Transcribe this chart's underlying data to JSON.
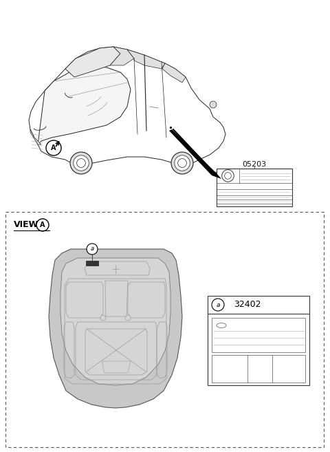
{
  "bg_color": "#ffffff",
  "part_number_top": "05203",
  "part_number_bottom": "32402",
  "view_label": "VIEW",
  "circle_label_A": "A",
  "circle_label_a": "a",
  "car_color": "#f0f0f0",
  "hood_fill": "#cccccc",
  "hood_inner_fill": "#bbbbbb"
}
